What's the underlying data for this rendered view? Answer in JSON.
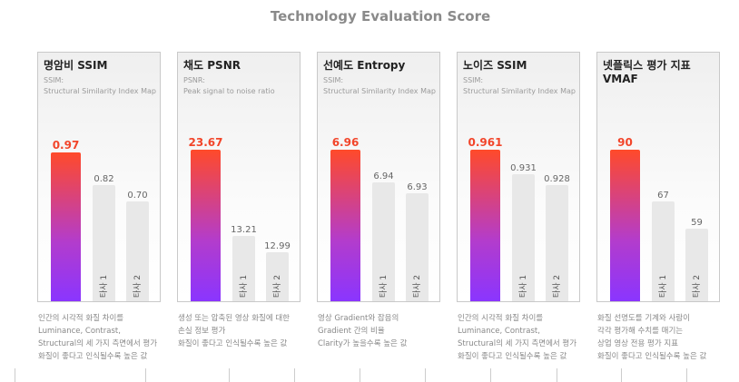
{
  "title": "Technology Evaluation Score",
  "chart_data": [
    {
      "type": "bar",
      "title": "명암비 SSIM",
      "subtitle": "SSIM:\nStructural Similarity Index Map",
      "categories": [
        "",
        "타사 1",
        "타사 2"
      ],
      "values": [
        0.97,
        0.82,
        0.7
      ],
      "labels": [
        "0.97",
        "0.82",
        "0.70"
      ],
      "description": "인간의 시각적 화질 차이를\nLuminance, Contrast,\nStructural의 세 가지 측면에서 평가\n화질이 좋다고 인식될수록 높은 값"
    },
    {
      "type": "bar",
      "title": "채도 PSNR",
      "subtitle": "PSNR:\nPeak signal to noise ratio",
      "categories": [
        "",
        "타사 1",
        "타사 2"
      ],
      "values": [
        23.67,
        13.21,
        12.99
      ],
      "labels": [
        "23.67",
        "13.21",
        "12.99"
      ],
      "description": "생성 또는 압축된 영상 화질에 대한\n손실 정보 평가\n화질이 좋다고 인식될수록 높은 값"
    },
    {
      "type": "bar",
      "title": "선예도 Entropy",
      "subtitle": "SSIM:\nStructural Similarity Index Map",
      "categories": [
        "",
        "타사 1",
        "타사 2"
      ],
      "values": [
        6.96,
        6.94,
        6.93
      ],
      "labels": [
        "6.96",
        "6.94",
        "6.93"
      ],
      "description": "영상 Gradient와 잡음의\nGradient 간의 비율\nClarity가 높을수록 높은 값"
    },
    {
      "type": "bar",
      "title": "노이즈 SSIM",
      "subtitle": "SSIM:\nStructural Similarity Index Map",
      "categories": [
        "",
        "타사 1",
        "타사 2"
      ],
      "values": [
        0.961,
        0.931,
        0.928
      ],
      "labels": [
        "0.961",
        "0.931",
        "0.928"
      ],
      "description": "인간의 시각적 화질 차이를\nLuminance, Contrast,\nStructural의 세 가지 측면에서 평가\n화질이 좋다고 인식될수록 높은 값"
    },
    {
      "type": "bar",
      "title": "넷플릭스 평가 지표\nVMAF",
      "subtitle": "",
      "categories": [
        "",
        "타사 1",
        "타사 2"
      ],
      "values": [
        90,
        67,
        59
      ],
      "labels": [
        "90",
        "67",
        "59"
      ],
      "description": "화질 선명도를 기계와 사람이\n각각 평가해 수치를 매기는\n상업 영상 전용 평가 지표\n화질이 좋다고 인식될수록 높은 값"
    }
  ],
  "colors": {
    "highlight": "#f2452a",
    "gradient_top": "#ff4a2a",
    "gradient_bottom": "#8a35ff",
    "competitor": "#e8e8e8"
  }
}
